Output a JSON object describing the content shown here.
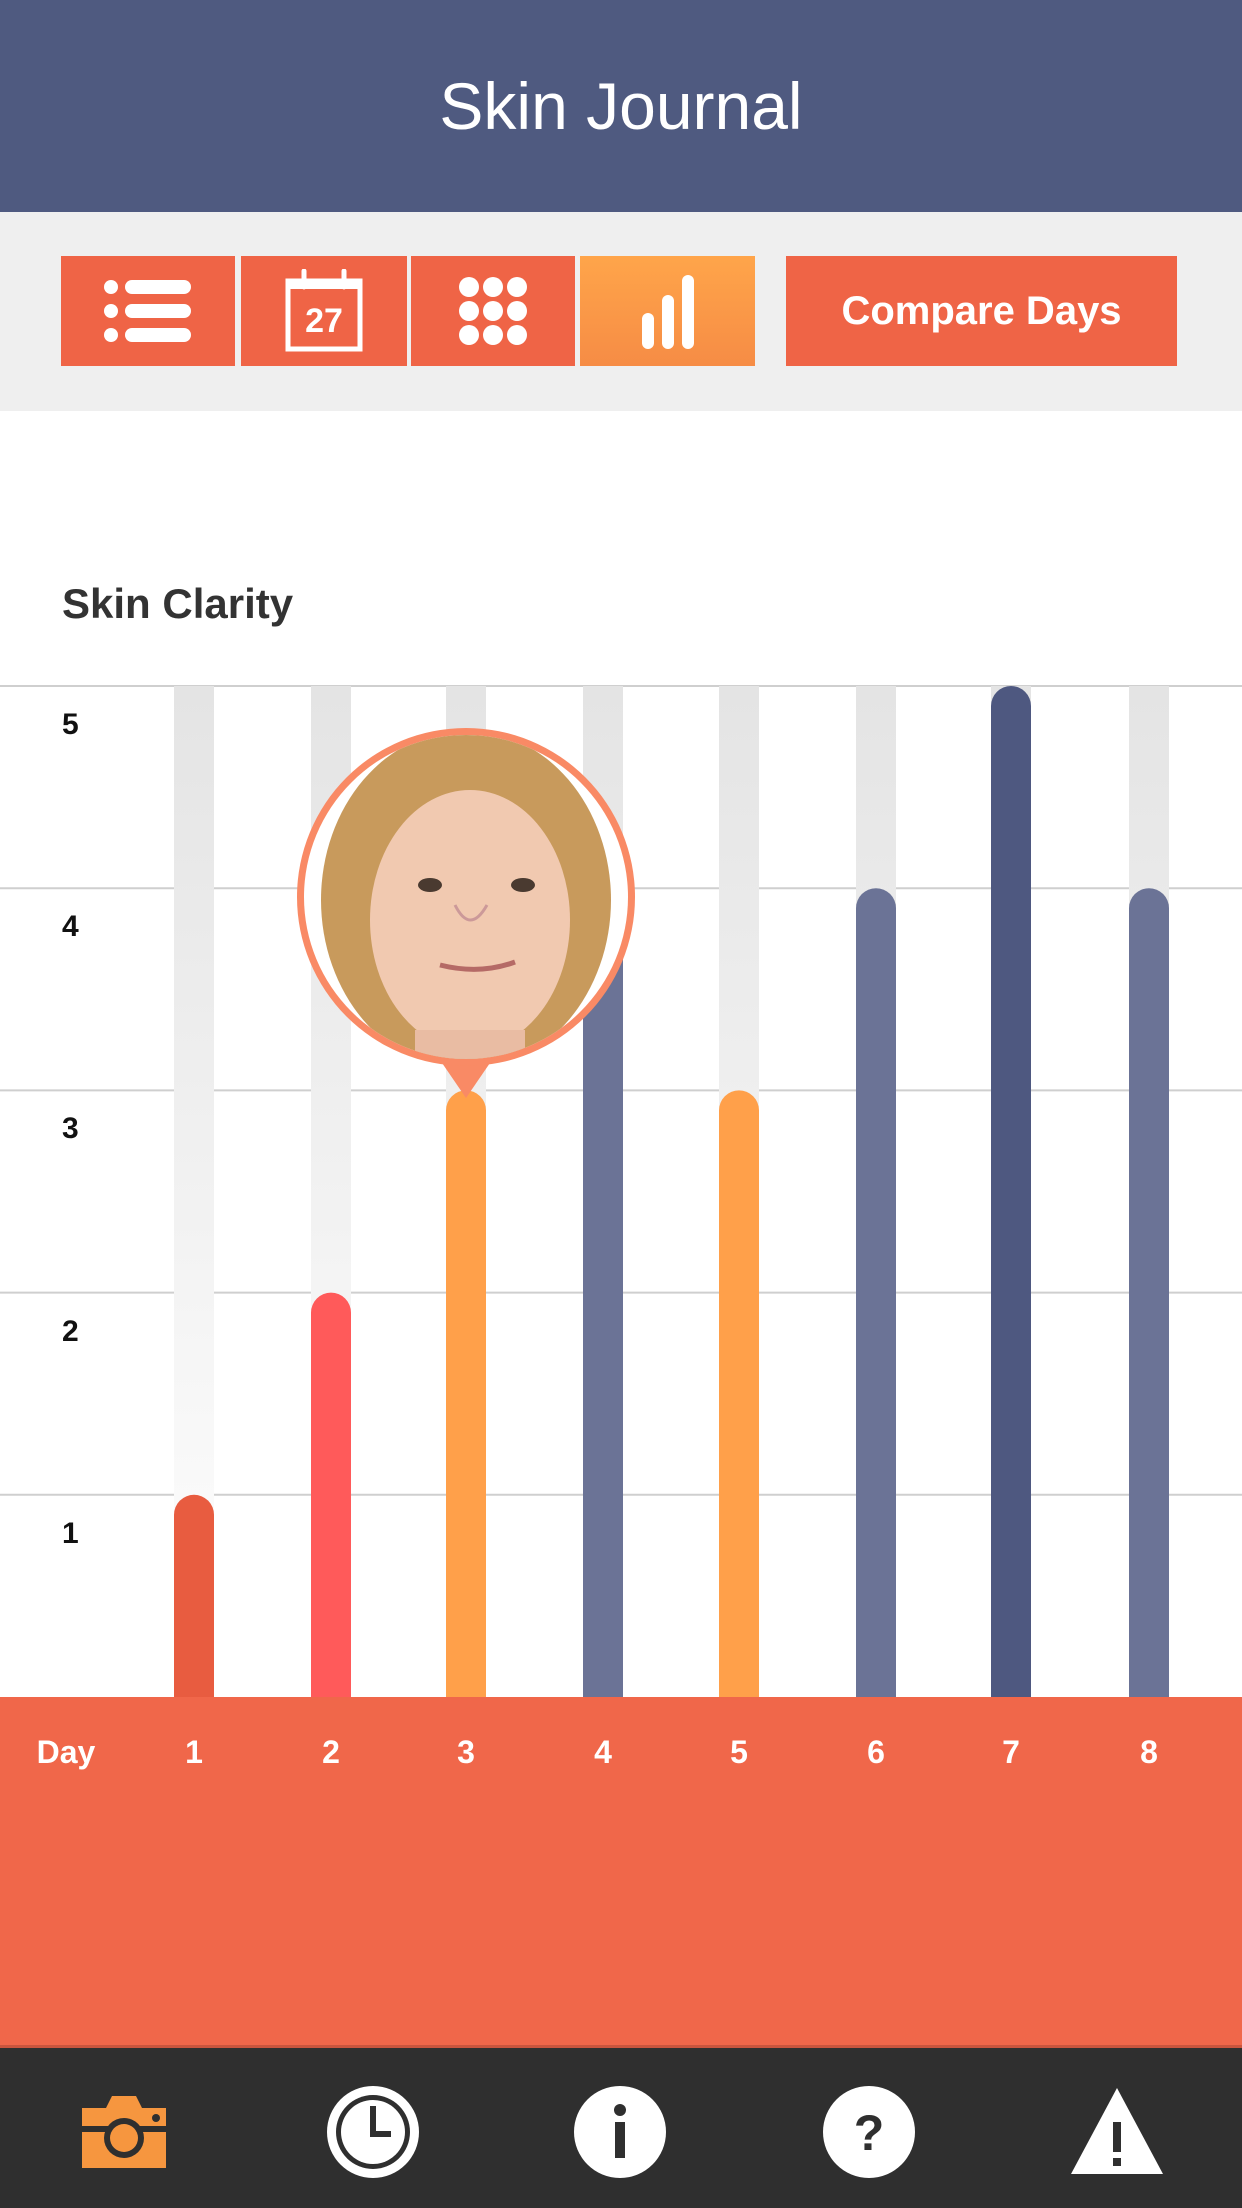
{
  "header": {
    "title": "Skin Journal"
  },
  "toolbar": {
    "buttons": [
      {
        "icon": "list-icon"
      },
      {
        "icon": "calendar-icon",
        "label": "27"
      },
      {
        "icon": "grid-icon"
      },
      {
        "icon": "bar-chart-icon",
        "active": true
      }
    ],
    "compare_label": "Compare Days"
  },
  "chart_data": {
    "type": "bar",
    "title": "Skin Clarity",
    "xlabel": "Day",
    "categories": [
      "1",
      "2",
      "3",
      "4",
      "5",
      "6",
      "7",
      "8"
    ],
    "values": [
      1,
      2,
      3,
      4,
      3,
      4,
      5,
      4
    ],
    "ylim": [
      0,
      5
    ],
    "yticks": [
      "1",
      "2",
      "3",
      "4",
      "5"
    ],
    "colors": [
      "#e85c40",
      "#ff5a5a",
      "#ffa04a",
      "#6b7396",
      "#ffa04a",
      "#6b7396",
      "#4e5880",
      "#6b7396"
    ],
    "selected_day": "3"
  },
  "footer": {
    "icons": [
      "camera-icon",
      "clock-icon",
      "info-icon",
      "help-icon",
      "warning-icon"
    ],
    "active_color": "#f6963f"
  }
}
